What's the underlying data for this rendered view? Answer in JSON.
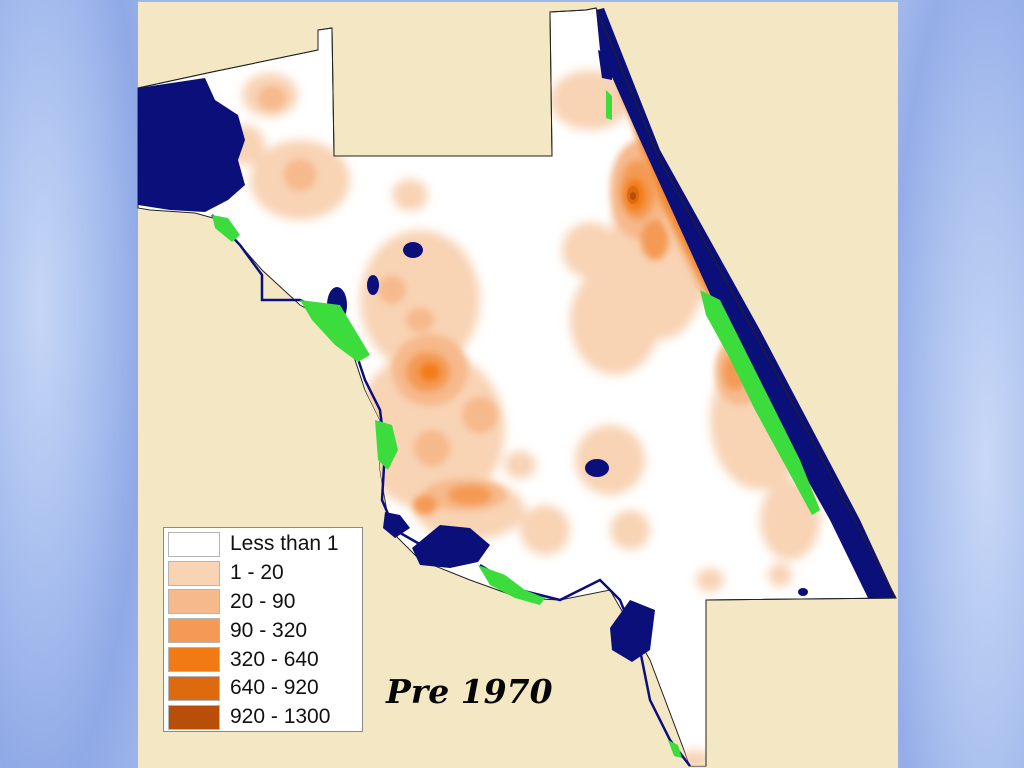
{
  "map": {
    "title": "Pre 1970",
    "colors": {
      "land": "#ffffff",
      "background": "#f3e7c4",
      "water": "#0b0f7a",
      "wetland": "#3cdc3c",
      "border": "#222222"
    }
  },
  "legend": {
    "items": [
      {
        "label": "Less than 1",
        "color": "#ffffff"
      },
      {
        "label": "1 - 20",
        "color": "#f8d3b4"
      },
      {
        "label": "20 - 90",
        "color": "#f6b98c"
      },
      {
        "label": "90 - 320",
        "color": "#f49a55"
      },
      {
        "label": "320 - 640",
        "color": "#f27a14"
      },
      {
        "label": "640 - 920",
        "color": "#dd6a0e"
      },
      {
        "label": "920 - 1300",
        "color": "#b84e08"
      }
    ]
  }
}
